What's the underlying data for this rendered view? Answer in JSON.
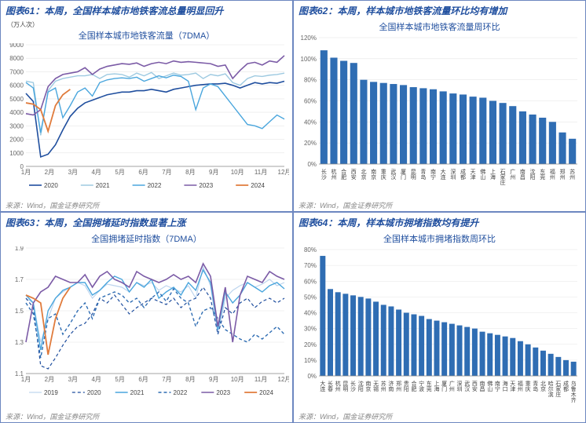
{
  "panels": {
    "tl": {
      "header": "图表61：本周，全国样本城市地铁客流总量明显回升",
      "chart_title": "全国样本城市地铁客流量（7DMA）",
      "y_unit": "（万人次）",
      "ylim": [
        0,
        9000
      ],
      "ytick_step": 1000,
      "x_categories": [
        "1月",
        "2月",
        "3月",
        "4月",
        "5月",
        "6月",
        "7月",
        "8月",
        "9月",
        "10月",
        "11月",
        "12月"
      ],
      "grid_color": "#e6e6e6",
      "background_color": "#ffffff",
      "legend": [
        {
          "label": "2020",
          "color": "#1f4e9e",
          "dash": "0",
          "width": 1.6
        },
        {
          "label": "2021",
          "color": "#9ecae1",
          "dash": "0",
          "width": 1.4
        },
        {
          "label": "2022",
          "color": "#4aa6dd",
          "dash": "0",
          "width": 1.4
        },
        {
          "label": "2023",
          "color": "#7b5ba6",
          "dash": "0",
          "width": 1.6
        },
        {
          "label": "2024",
          "color": "#e07b3c",
          "dash": "0",
          "width": 1.8
        }
      ],
      "series": {
        "2020": [
          5400,
          4800,
          700,
          900,
          1600,
          2700,
          3700,
          4300,
          4700,
          4900,
          5100,
          5300,
          5400,
          5500,
          5500,
          5600,
          5600,
          5700,
          5600,
          5500,
          5700,
          5800,
          5900,
          6000,
          6050,
          6100,
          6100,
          6150,
          6000,
          5800,
          6000,
          6200,
          6100,
          6200,
          6150,
          6300
        ],
        "2021": [
          6300,
          6200,
          2300,
          5600,
          6300,
          6500,
          6600,
          6700,
          6700,
          6800,
          6500,
          6800,
          6850,
          6800,
          6600,
          6900,
          6700,
          6950,
          6500,
          6700,
          6900,
          6750,
          6800,
          6900,
          6500,
          6800,
          6700,
          6850,
          6200,
          6000,
          6500,
          6700,
          6650,
          6750,
          6800,
          6900
        ],
        "2022": [
          6200,
          5800,
          2500,
          5500,
          5800,
          3600,
          4500,
          5500,
          5800,
          5200,
          6200,
          6400,
          6500,
          6550,
          6500,
          6600,
          6300,
          6500,
          6700,
          6550,
          6750,
          6650,
          6300,
          4200,
          5800,
          6100,
          5900,
          5200,
          4500,
          3800,
          3100,
          3000,
          2800,
          3300,
          3800,
          3500
        ],
        "2023": [
          3900,
          3800,
          4200,
          5900,
          6500,
          6800,
          6900,
          7000,
          7300,
          6800,
          7200,
          7400,
          7500,
          7600,
          7550,
          7650,
          7400,
          7600,
          7700,
          7600,
          7800,
          7700,
          7750,
          7700,
          7650,
          7600,
          7400,
          7500,
          6500,
          7100,
          7600,
          7700,
          7500,
          7800,
          7700,
          8200
        ],
        "2024": [
          4700,
          4600,
          4200,
          2600,
          4500,
          5300,
          5700
        ]
      },
      "source": "来源：Wind，国金证券研究所"
    },
    "tr": {
      "header": "图表62：本周，样本城市地铁客流量环比均有增加",
      "chart_title": "全国样本城市地铁客流量周环比",
      "ylim": [
        0,
        120
      ],
      "ytick_step": 20,
      "ysuffix": "%",
      "bar_color": "#2f6db3",
      "grid_color": "#e6e6e6",
      "background_color": "#ffffff",
      "categories": [
        "长沙",
        "杭州",
        "合肥",
        "西安",
        "北京",
        "南京",
        "重庆",
        "武汉",
        "厦门",
        "昆明",
        "青岛",
        "南宁",
        "大连",
        "深圳",
        "成都",
        "天津",
        "佛山",
        "上海",
        "石家庄",
        "广州",
        "南昌",
        "沈阳",
        "东莞",
        "福州",
        "郑州",
        "苏州"
      ],
      "values": [
        108,
        101,
        98,
        96,
        80,
        78,
        77,
        76,
        75,
        73,
        72,
        71,
        69,
        67,
        66,
        64,
        63,
        60,
        58,
        55,
        50,
        47,
        44,
        40,
        30,
        24
      ],
      "source": "来源：Wind，国金证券研究所"
    },
    "bl": {
      "header": "图表63：本周，全国拥堵延时指数显著上涨",
      "chart_title": "全国拥堵延时指数（7DMA）",
      "ylim": [
        1.1,
        1.9
      ],
      "ytick_step": 0.2,
      "x_categories": [
        "1月",
        "2月",
        "3月",
        "4月",
        "5月",
        "6月",
        "7月",
        "8月",
        "9月",
        "10月",
        "11月",
        "12月"
      ],
      "grid_color": "#e6e6e6",
      "background_color": "#ffffff",
      "legend": [
        {
          "label": "2019",
          "color": "#bcd4ee",
          "dash": "0",
          "width": 1.2
        },
        {
          "label": "2020",
          "color": "#1f4e9e",
          "dash": "4,3",
          "width": 1.2
        },
        {
          "label": "2021",
          "color": "#4aa6dd",
          "dash": "0",
          "width": 1.4
        },
        {
          "label": "2022",
          "color": "#2f6db3",
          "dash": "4,3",
          "width": 1.4
        },
        {
          "label": "2023",
          "color": "#7b5ba6",
          "dash": "0",
          "width": 1.6
        },
        {
          "label": "2024",
          "color": "#e07b3c",
          "dash": "0",
          "width": 1.8
        }
      ],
      "series": {
        "2019": [
          1.58,
          1.55,
          1.3,
          1.45,
          1.58,
          1.62,
          1.65,
          1.68,
          1.66,
          1.58,
          1.63,
          1.67,
          1.66,
          1.65,
          1.62,
          1.68,
          1.66,
          1.68,
          1.63,
          1.66,
          1.64,
          1.62,
          1.66,
          1.58,
          1.78,
          1.66,
          1.35,
          1.58,
          1.63,
          1.66,
          1.68,
          1.65,
          1.67,
          1.7,
          1.66,
          1.68
        ],
        "2020": [
          1.58,
          1.52,
          1.15,
          1.13,
          1.2,
          1.28,
          1.35,
          1.4,
          1.42,
          1.48,
          1.58,
          1.55,
          1.6,
          1.54,
          1.48,
          1.52,
          1.55,
          1.58,
          1.56,
          1.54,
          1.58,
          1.52,
          1.56,
          1.58,
          1.65,
          1.58,
          1.35,
          1.52,
          1.48,
          1.55,
          1.58,
          1.52,
          1.56,
          1.58,
          1.55,
          1.58
        ],
        "2021": [
          1.6,
          1.55,
          1.25,
          1.5,
          1.58,
          1.63,
          1.65,
          1.68,
          1.68,
          1.6,
          1.63,
          1.68,
          1.72,
          1.7,
          1.62,
          1.68,
          1.65,
          1.7,
          1.58,
          1.62,
          1.65,
          1.6,
          1.68,
          1.63,
          1.76,
          1.68,
          1.38,
          1.62,
          1.55,
          1.6,
          1.68,
          1.65,
          1.62,
          1.66,
          1.68,
          1.64
        ],
        "2022": [
          1.55,
          1.48,
          1.2,
          1.45,
          1.48,
          1.35,
          1.42,
          1.5,
          1.55,
          1.45,
          1.58,
          1.6,
          1.62,
          1.6,
          1.55,
          1.58,
          1.52,
          1.58,
          1.62,
          1.56,
          1.64,
          1.58,
          1.55,
          1.4,
          1.5,
          1.52,
          1.45,
          1.38,
          1.35,
          1.32,
          1.3,
          1.35,
          1.32,
          1.36,
          1.4,
          1.35
        ],
        "2023": [
          1.3,
          1.55,
          1.62,
          1.65,
          1.72,
          1.7,
          1.68,
          1.68,
          1.73,
          1.65,
          1.72,
          1.75,
          1.7,
          1.68,
          1.65,
          1.75,
          1.72,
          1.7,
          1.68,
          1.7,
          1.73,
          1.7,
          1.72,
          1.68,
          1.8,
          1.72,
          1.4,
          1.65,
          1.3,
          1.6,
          1.72,
          1.7,
          1.68,
          1.75,
          1.72,
          1.7
        ],
        "2024": [
          1.6,
          1.58,
          1.55,
          1.22,
          1.45,
          1.58,
          1.65
        ]
      },
      "source": "来源：Wind，国金证券研究所"
    },
    "br": {
      "header": "图表64：本周，样本城市拥堵指数均有提升",
      "chart_title": "全国样本城市拥堵指数周环比",
      "ylim": [
        0,
        80
      ],
      "ytick_step": 10,
      "ysuffix": "%",
      "bar_color": "#2f6db3",
      "grid_color": "#e6e6e6",
      "background_color": "#ffffff",
      "categories": [
        "大连",
        "长春",
        "杭州",
        "昆明",
        "长沙",
        "沈阳",
        "南京",
        "无锡",
        "苏州",
        "济南",
        "郑州",
        "贵阳",
        "合肥",
        "宁波",
        "东莞",
        "上海",
        "厦门",
        "广州",
        "深圳",
        "武汉",
        "西安",
        "南昌",
        "佛山",
        "南宁",
        "海口",
        "天津",
        "福州",
        "重庆",
        "青岛",
        "北京",
        "哈尔滨",
        "石家庄",
        "成都",
        "乌鲁木齐"
      ],
      "values": [
        76,
        55,
        53,
        52,
        51,
        50,
        49,
        47,
        45,
        44,
        42,
        40,
        39,
        38,
        36,
        35,
        34,
        33,
        32,
        31,
        30,
        28,
        27,
        26,
        25,
        24,
        22,
        20,
        18,
        16,
        14,
        12,
        10,
        9
      ],
      "source": "来源：Wind，国金证券研究所"
    }
  }
}
